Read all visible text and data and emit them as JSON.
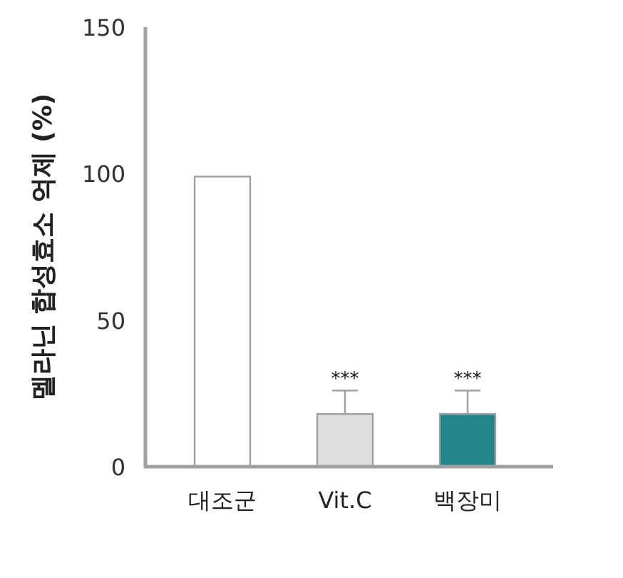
{
  "chart_data": {
    "type": "bar",
    "ylabel": "멜라닌 합성효소 억제 (%)",
    "categories": [
      "대조군",
      "Vit.C",
      "백장미"
    ],
    "values": [
      99,
      18,
      18
    ],
    "colors": [
      "#ffffff",
      "#dddddd",
      "#23868a"
    ],
    "errors": [
      null,
      [
        18,
        26
      ],
      [
        18,
        26
      ]
    ],
    "ylim": [
      0,
      150
    ],
    "yticks": [
      0,
      50,
      100,
      150
    ],
    "grid": false,
    "annotations": [
      {
        "text": "***",
        "x": "Vit.C",
        "y": 26
      },
      {
        "text": "***",
        "x": "백장미",
        "y": 26
      }
    ]
  }
}
